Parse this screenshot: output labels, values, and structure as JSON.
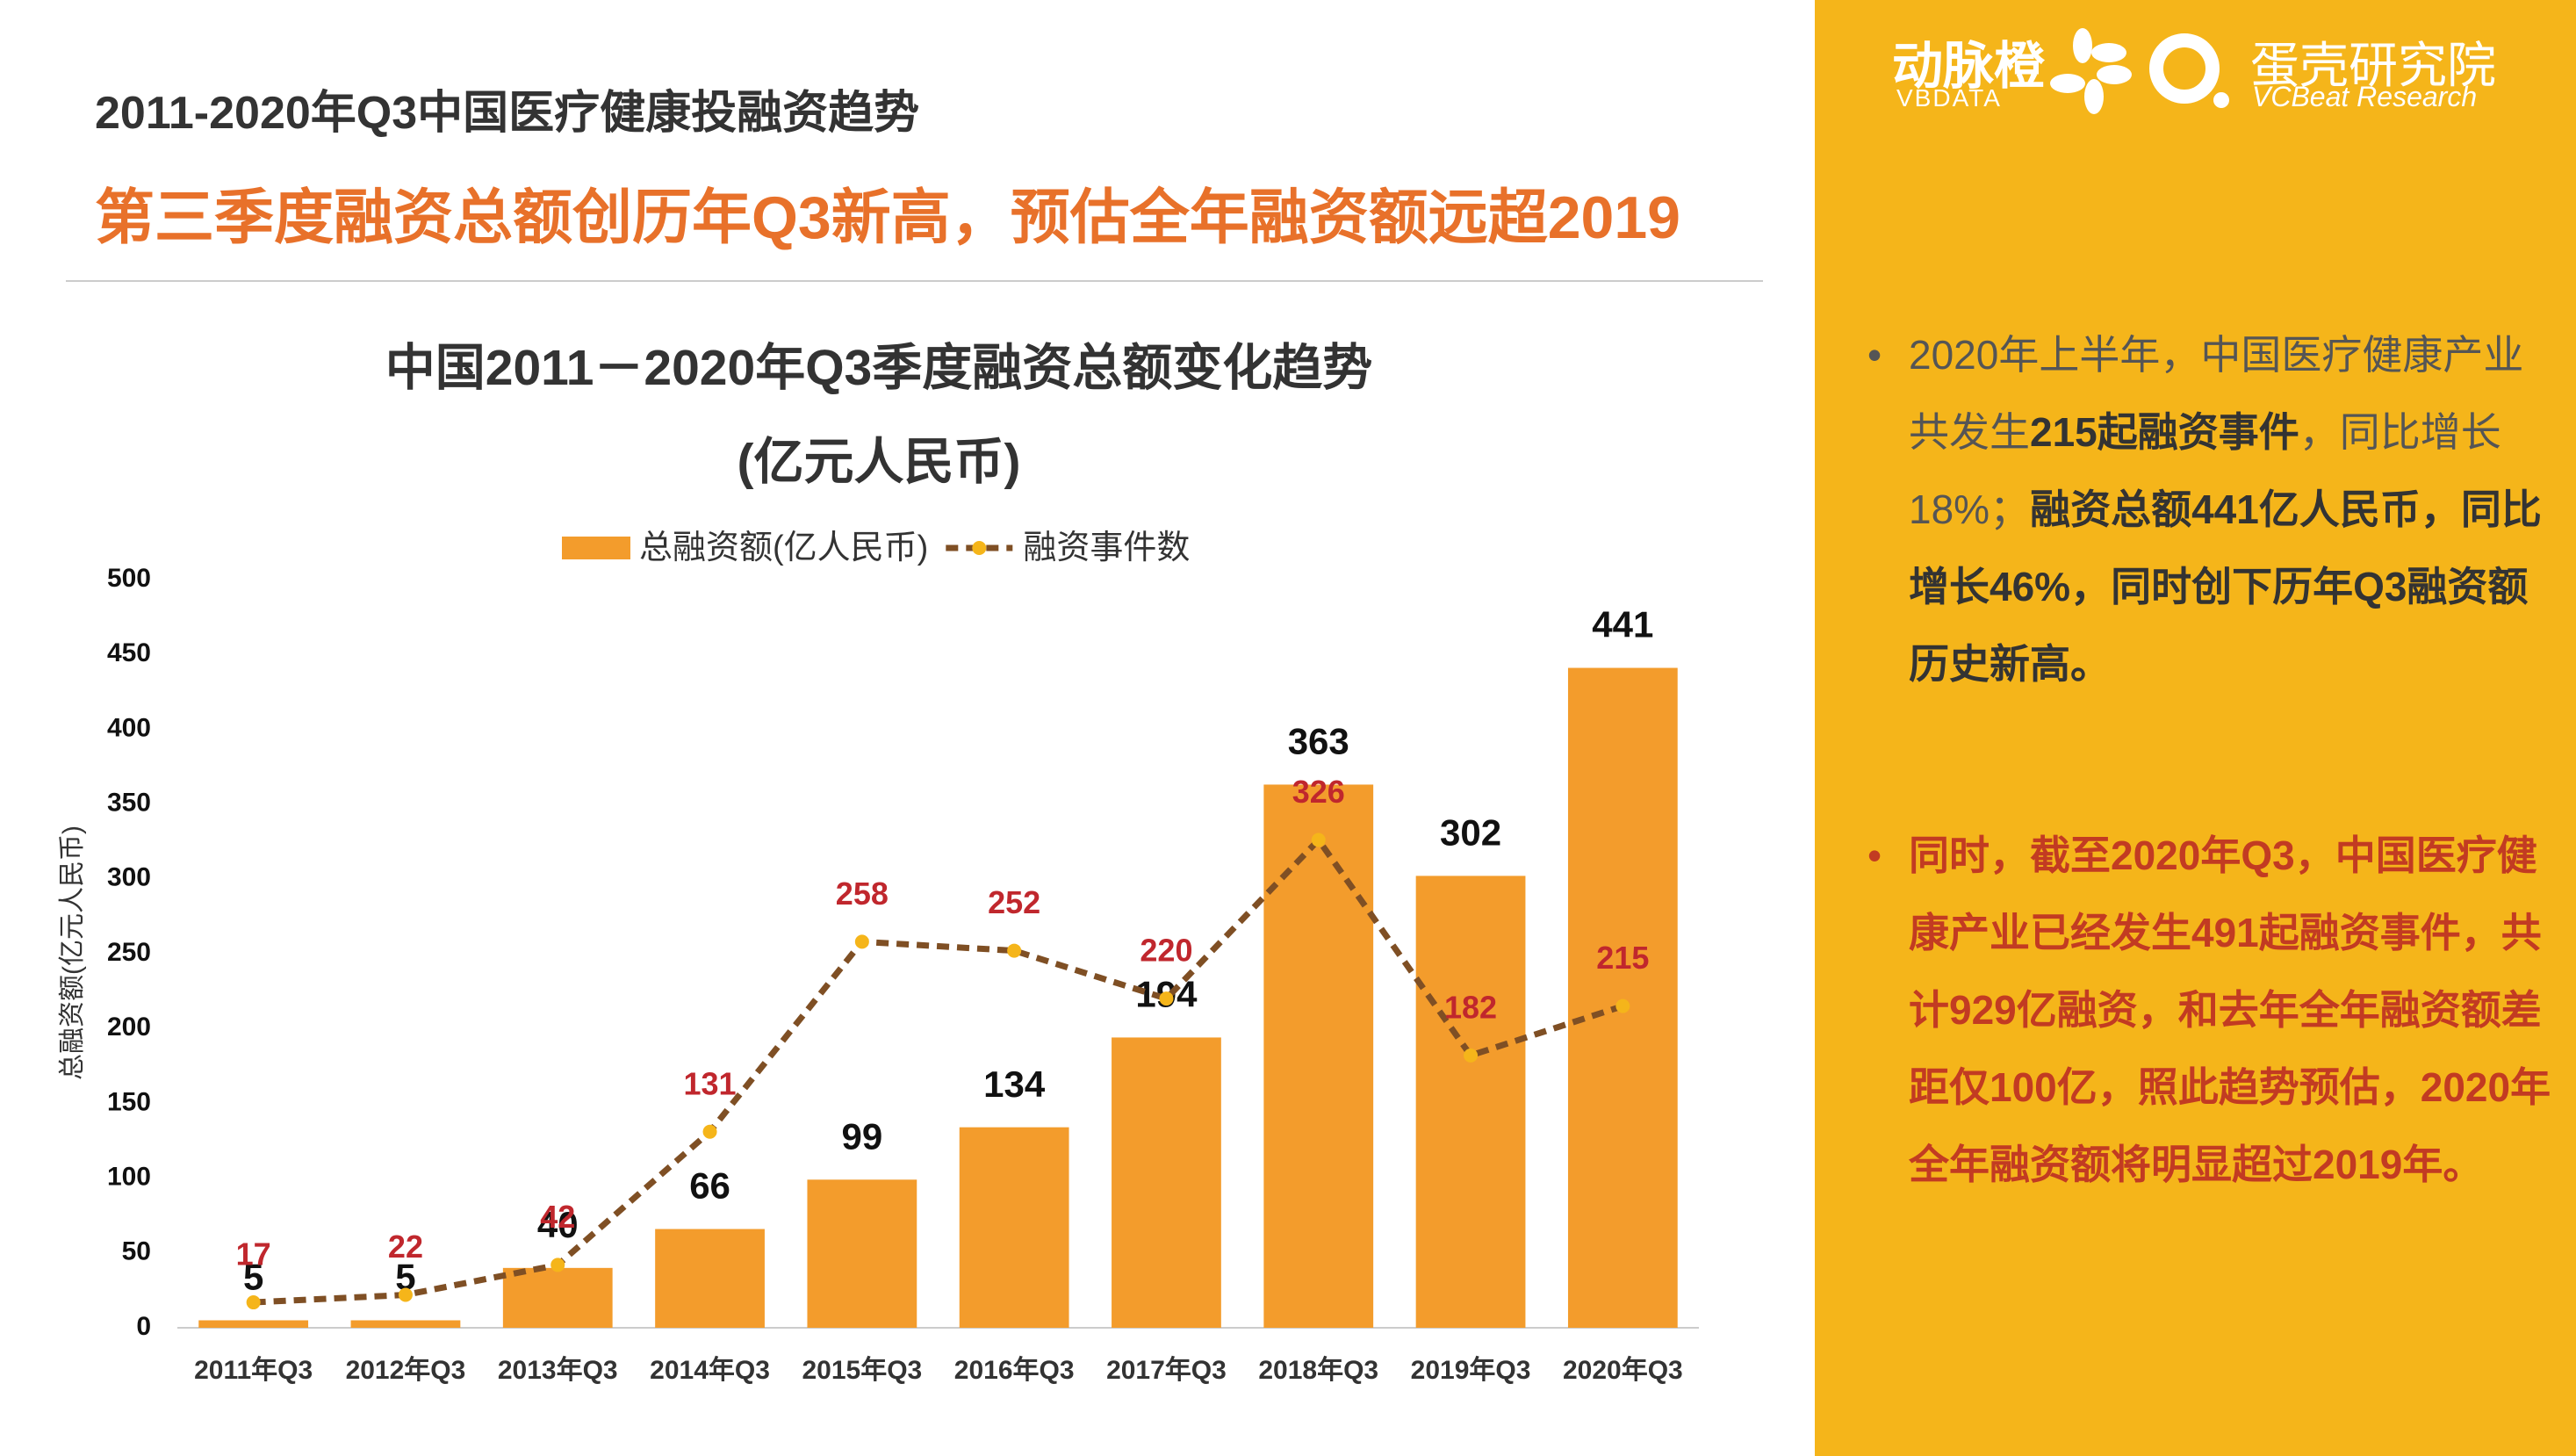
{
  "header": {
    "title": "2011-2020年Q3中国医疗健康投融资趋势",
    "subtitle": "第三季度融资总额创历年Q3新高，预估全年融资额远超2019"
  },
  "logos": {
    "brand1": "动脉橙",
    "brand1_en": "VBDATA",
    "brand2": "蛋壳研究院",
    "brand2_en": "VCBeat Research"
  },
  "chart_data": {
    "type": "bar",
    "title": "中国2011－2020年Q3季度融资总额变化趋势",
    "subtitle": "(亿元人民币)",
    "y_label": "总融资额(亿元人民币)",
    "categories": [
      "2011年Q3",
      "2012年Q3",
      "2013年Q3",
      "2014年Q3",
      "2015年Q3",
      "2016年Q3",
      "2017年Q3",
      "2018年Q3",
      "2019年Q3",
      "2020年Q3"
    ],
    "series": [
      {
        "name": "总融资额(亿人民币)",
        "type": "bar",
        "color": "#f39c2c",
        "label_color": "#111111",
        "values": [
          5,
          5,
          40,
          66,
          99,
          134,
          194,
          363,
          302,
          441
        ]
      },
      {
        "name": "融资事件数",
        "type": "line",
        "color": "#7f4f24",
        "marker_color": "#f5b51a",
        "label_color": "#c0272d",
        "values": [
          17,
          22,
          42,
          131,
          258,
          252,
          220,
          326,
          182,
          215
        ]
      }
    ],
    "ylim": [
      0,
      500
    ],
    "yticks": [
      0,
      50,
      100,
      150,
      200,
      250,
      300,
      350,
      400,
      450,
      500
    ]
  },
  "notes": [
    {
      "runs": [
        {
          "text": "2020年上半年，中国医疗健康产业共发生",
          "bold": false
        },
        {
          "text": "215起融资事件",
          "bold": true
        },
        {
          "text": "，同比增长18%；",
          "bold": false
        },
        {
          "text": "融资总额441亿人民币，同比增长46%，同时创下历年Q3融资额历史新高。",
          "bold": true
        }
      ]
    },
    {
      "runs": [
        {
          "text": "同时，截至2020年Q3，中国医疗健康产业已经发生491起融资事件，共计929亿融资，和去年全年融资额差距仅100亿，照此趋势预估，2020年全年融资额将明显超过2019年。",
          "bold": true
        }
      ]
    }
  ]
}
